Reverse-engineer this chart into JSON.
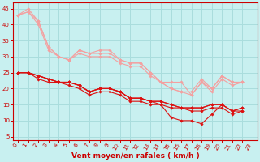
{
  "background_color": "#c8f0f0",
  "grid_color": "#aadddd",
  "xlabel": "Vent moyen/en rafales ( km/h )",
  "xlim": [
    -0.5,
    23.5
  ],
  "ylim": [
    4,
    47
  ],
  "yticks": [
    5,
    10,
    15,
    20,
    25,
    30,
    35,
    40,
    45
  ],
  "xticks": [
    0,
    1,
    2,
    3,
    4,
    5,
    6,
    7,
    8,
    9,
    10,
    11,
    12,
    13,
    14,
    15,
    16,
    17,
    18,
    19,
    20,
    21,
    22,
    23
  ],
  "series_light": [
    [
      43,
      45,
      41,
      33,
      30,
      29,
      32,
      31,
      32,
      32,
      29,
      28,
      28,
      25,
      22,
      22,
      22,
      18,
      22,
      20,
      24,
      22,
      22
    ],
    [
      43,
      44,
      41,
      33,
      30,
      29,
      32,
      31,
      31,
      31,
      29,
      28,
      28,
      25,
      22,
      20,
      19,
      19,
      23,
      20,
      24,
      22,
      22
    ],
    [
      43,
      44,
      40,
      32,
      30,
      29,
      31,
      30,
      30,
      30,
      28,
      27,
      27,
      24,
      22,
      20,
      19,
      18,
      22,
      19,
      23,
      21,
      22
    ]
  ],
  "series_dark": [
    [
      25,
      25,
      24,
      23,
      22,
      22,
      21,
      19,
      20,
      20,
      19,
      17,
      17,
      16,
      15,
      11,
      10,
      10,
      9,
      12,
      15,
      13,
      13
    ],
    [
      25,
      25,
      24,
      23,
      22,
      22,
      21,
      19,
      20,
      20,
      19,
      17,
      17,
      16,
      16,
      15,
      14,
      14,
      14,
      15,
      15,
      13,
      14
    ],
    [
      25,
      25,
      24,
      23,
      22,
      22,
      21,
      19,
      20,
      20,
      19,
      17,
      17,
      16,
      16,
      15,
      14,
      14,
      14,
      15,
      15,
      13,
      14
    ],
    [
      25,
      25,
      23,
      22,
      22,
      21,
      20,
      18,
      19,
      19,
      18,
      16,
      16,
      15,
      15,
      14,
      14,
      13,
      13,
      14,
      14,
      12,
      13
    ]
  ],
  "light_color": "#f4a0a0",
  "dark_color": "#dd1111",
  "marker": "D",
  "marker_size": 1.8,
  "line_width": 0.8,
  "tick_color": "#cc0000",
  "label_fontsize": 5.0,
  "xlabel_fontsize": 6.5
}
